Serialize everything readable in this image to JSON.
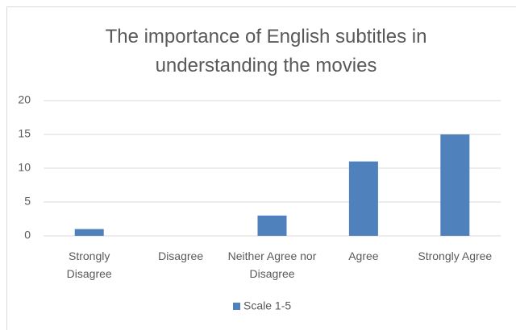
{
  "chart_data": {
    "type": "bar",
    "title": "The importance of English subtitles in understanding the movies",
    "categories": [
      "Strongly Disagree",
      "Disagree",
      "Neither Agree nor Disagree",
      "Agree",
      "Strongly Agree"
    ],
    "series": [
      {
        "name": "Scale 1-5",
        "color": "#4f81bd",
        "values": [
          1,
          0,
          3,
          11,
          15
        ]
      }
    ],
    "ylim": [
      0,
      20
    ],
    "yticks": [
      0,
      5,
      10,
      15,
      20
    ],
    "grid": true,
    "legend": "bottom"
  }
}
